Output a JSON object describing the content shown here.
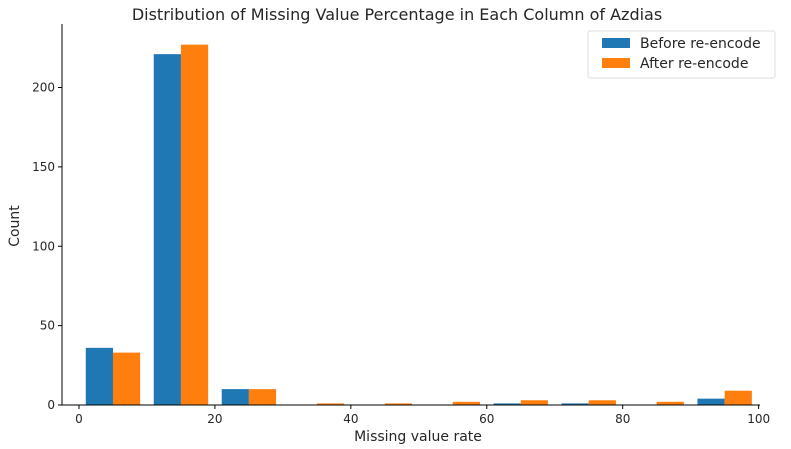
{
  "chart_data": {
    "type": "bar",
    "title": "Distribution of Missing Value Percentage in Each Column of Azdias",
    "xlabel": "Missing value rate",
    "ylabel": "Count",
    "xlim": [
      -2.5,
      100.2
    ],
    "ylim": [
      0,
      240
    ],
    "x_ticks": [
      0,
      20,
      40,
      60,
      80,
      100
    ],
    "y_ticks": [
      0,
      50,
      100,
      150,
      200
    ],
    "bins": [
      [
        0,
        10
      ],
      [
        10,
        20
      ],
      [
        20,
        30
      ],
      [
        30,
        40
      ],
      [
        40,
        50
      ],
      [
        50,
        60
      ],
      [
        60,
        70
      ],
      [
        70,
        80
      ],
      [
        80,
        90
      ],
      [
        90,
        100
      ]
    ],
    "series": [
      {
        "name": "Before re-encode",
        "color": "#1f77b4",
        "values": [
          36,
          221,
          10,
          0,
          0,
          0,
          1,
          1,
          0,
          4
        ]
      },
      {
        "name": "After re-encode",
        "color": "#ff7f0e",
        "values": [
          33,
          227,
          10,
          1,
          1,
          2,
          3,
          3,
          2,
          9
        ]
      }
    ],
    "grid": false,
    "legend_position": "top-right"
  }
}
